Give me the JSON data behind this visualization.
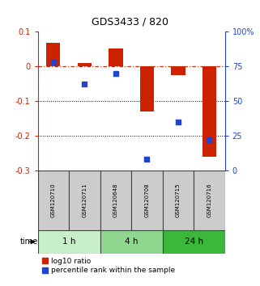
{
  "title": "GDS3433 / 820",
  "samples": [
    "GSM120710",
    "GSM120711",
    "GSM120648",
    "GSM120708",
    "GSM120715",
    "GSM120716"
  ],
  "log10_ratio": [
    0.068,
    0.01,
    0.05,
    -0.13,
    -0.025,
    -0.26
  ],
  "percentile_rank": [
    78,
    62,
    70,
    8,
    35,
    22
  ],
  "time_groups": [
    {
      "label": "1 h",
      "n": 2,
      "color": "#c8f0c8"
    },
    {
      "label": "4 h",
      "n": 2,
      "color": "#90d890"
    },
    {
      "label": "24 h",
      "n": 2,
      "color": "#3ab83a"
    }
  ],
  "ylim_left": [
    -0.3,
    0.1
  ],
  "ylim_right": [
    0,
    100
  ],
  "yticks_left": [
    -0.3,
    -0.2,
    -0.1,
    0.0,
    0.1
  ],
  "yticks_right": [
    0,
    25,
    50,
    75,
    100
  ],
  "bar_color": "#cc2200",
  "dot_color": "#2244cc",
  "background_color": "#ffffff",
  "label_log10": "log10 ratio",
  "label_pct": "percentile rank within the sample",
  "sample_box_color": "#cccccc",
  "sample_box_edge": "#444444"
}
